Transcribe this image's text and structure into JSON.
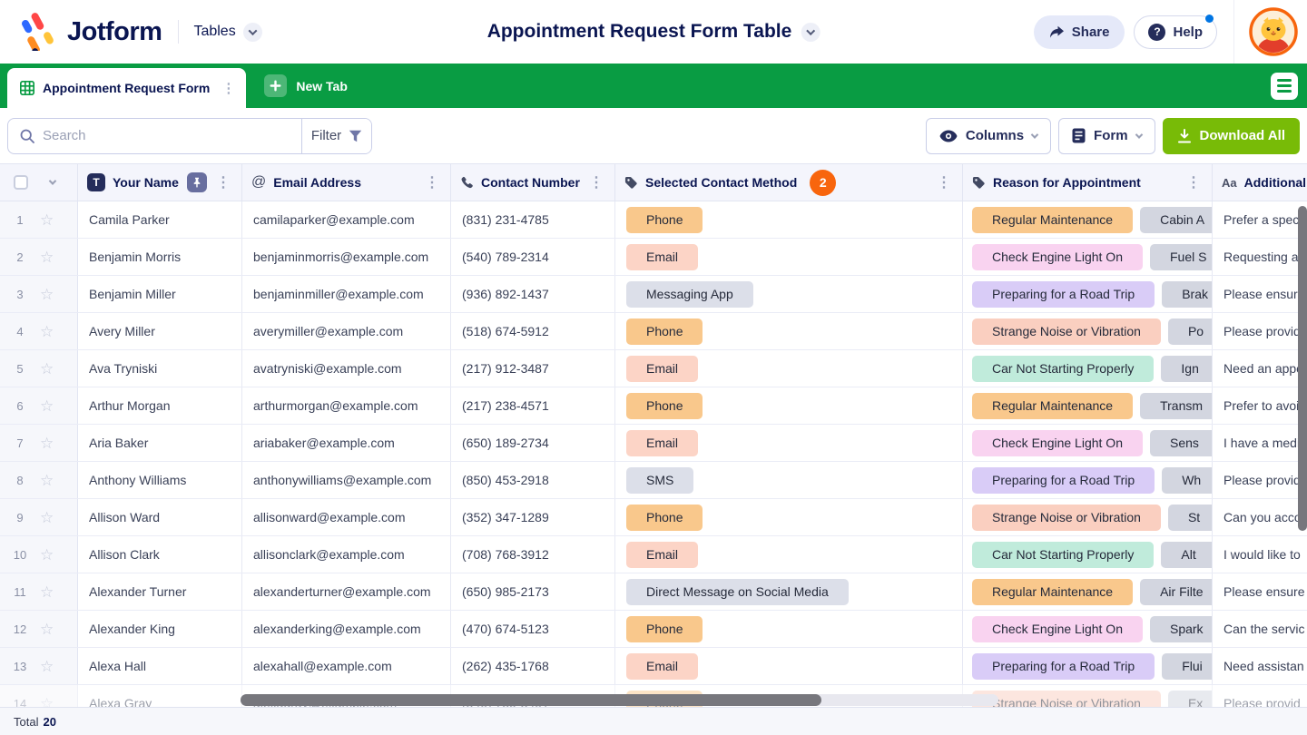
{
  "colors": {
    "brand_green": "#099C43",
    "download_green": "#78BB07",
    "navy": "#0A1551",
    "count_badge_orange": "#F8650D",
    "pill_orange": "#F9C88C",
    "pill_salmon": "#FCD4C6",
    "pill_gray": "#DCDFE9",
    "pill_gray2": "#D3D6E0",
    "pill_magenta": "#F9D3F0",
    "pill_lavender": "#D9CCF7",
    "pill_salmon2": "#FACFC0",
    "pill_mint": "#C0EBDB"
  },
  "icons": {
    "at": "@",
    "text_col": "T",
    "typography": "Aa",
    "qmark": "?",
    "star": "☆",
    "dots": "⋮"
  },
  "topbar": {
    "brand": "Jotform",
    "product": "Tables",
    "title": "Appointment Request Form Table",
    "share": "Share",
    "help": "Help"
  },
  "tabbar": {
    "active_tab": "Appointment Request Form",
    "new_tab": "New Tab"
  },
  "toolbar": {
    "search_placeholder": "Search",
    "filter": "Filter",
    "columns": "Columns",
    "form": "Form",
    "download": "Download All"
  },
  "table": {
    "columns": [
      {
        "label": "Your Name"
      },
      {
        "label": "Email Address"
      },
      {
        "label": "Contact Number"
      },
      {
        "label": "Selected Contact Method",
        "badge": "2"
      },
      {
        "label": "Reason for Appointment"
      },
      {
        "label": "Additional"
      }
    ],
    "rows": [
      {
        "num": "1",
        "name": "Camila Parker",
        "email": "camilaparker@example.com",
        "phone": "(831) 231-4785",
        "method": "Phone",
        "method_color": "pill_orange",
        "reason": "Regular Maintenance",
        "reason_color": "pill_orange",
        "reason2": "Cabin A",
        "additional": "Prefer a specif",
        "faded": false
      },
      {
        "num": "2",
        "name": "Benjamin Morris",
        "email": "benjaminmorris@example.com",
        "phone": "(540) 789-2314",
        "method": "Email",
        "method_color": "pill_salmon",
        "reason": "Check Engine Light On",
        "reason_color": "pill_magenta",
        "reason2": "Fuel S",
        "additional": "Requesting a sp",
        "faded": false
      },
      {
        "num": "3",
        "name": "Benjamin Miller",
        "email": "benjaminmiller@example.com",
        "phone": "(936) 892-1437",
        "method": "Messaging App",
        "method_color": "pill_gray",
        "reason": "Preparing for a Road Trip",
        "reason_color": "pill_lavender",
        "reason2": "Brak",
        "additional": "Please ensure a",
        "faded": false
      },
      {
        "num": "4",
        "name": "Avery Miller",
        "email": "averymiller@example.com",
        "phone": "(518) 674-5912",
        "method": "Phone",
        "method_color": "pill_orange",
        "reason": "Strange Noise or Vibration",
        "reason_color": "pill_salmon2",
        "reason2": "Po",
        "additional": "Please provide",
        "faded": false
      },
      {
        "num": "5",
        "name": "Ava Tryniski",
        "email": "avatryniski@example.com",
        "phone": "(217) 912-3487",
        "method": "Email",
        "method_color": "pill_salmon",
        "reason": "Car Not Starting Properly",
        "reason_color": "pill_mint",
        "reason2": "Ign",
        "additional": "Need an appoi",
        "faded": false
      },
      {
        "num": "6",
        "name": "Arthur Morgan",
        "email": "arthurmorgan@example.com",
        "phone": "(217) 238-4571",
        "method": "Phone",
        "method_color": "pill_orange",
        "reason": "Regular Maintenance",
        "reason_color": "pill_orange",
        "reason2": "Transm",
        "additional": "Prefer to avoid",
        "faded": false
      },
      {
        "num": "7",
        "name": "Aria Baker",
        "email": "ariabaker@example.com",
        "phone": "(650) 189-2734",
        "method": "Email",
        "method_color": "pill_salmon",
        "reason": "Check Engine Light On",
        "reason_color": "pill_magenta",
        "reason2": "Sens",
        "additional": "I have a medica",
        "faded": false
      },
      {
        "num": "8",
        "name": "Anthony Williams",
        "email": "anthonywilliams@example.com",
        "phone": "(850) 453-2918",
        "method": "SMS",
        "method_color": "pill_gray",
        "reason": "Preparing for a Road Trip",
        "reason_color": "pill_lavender",
        "reason2": "Wh",
        "additional": "Please provide",
        "faded": false
      },
      {
        "num": "9",
        "name": "Allison Ward",
        "email": "allisonward@example.com",
        "phone": "(352) 347-1289",
        "method": "Phone",
        "method_color": "pill_orange",
        "reason": "Strange Noise or Vibration",
        "reason_color": "pill_salmon2",
        "reason2": "St",
        "additional": "Can you accom",
        "faded": false
      },
      {
        "num": "10",
        "name": "Allison Clark",
        "email": "allisonclark@example.com",
        "phone": "(708) 768-3912",
        "method": "Email",
        "method_color": "pill_salmon",
        "reason": "Car Not Starting Properly",
        "reason_color": "pill_mint",
        "reason2": "Alt",
        "additional": "I would like to",
        "faded": false
      },
      {
        "num": "11",
        "name": "Alexander Turner",
        "email": "alexanderturner@example.com",
        "phone": "(650) 985-2173",
        "method": "Direct Message on Social Media",
        "method_color": "pill_gray",
        "reason": "Regular Maintenance",
        "reason_color": "pill_orange",
        "reason2": "Air Filte",
        "additional": "Please ensure t",
        "faded": false
      },
      {
        "num": "12",
        "name": "Alexander King",
        "email": "alexanderking@example.com",
        "phone": "(470) 674-5123",
        "method": "Phone",
        "method_color": "pill_orange",
        "reason": "Check Engine Light On",
        "reason_color": "pill_magenta",
        "reason2": "Spark",
        "additional": "Can the servic",
        "faded": false
      },
      {
        "num": "13",
        "name": "Alexa Hall",
        "email": "alexahall@example.com",
        "phone": "(262) 435-1768",
        "method": "Email",
        "method_color": "pill_salmon",
        "reason": "Preparing for a Road Trip",
        "reason_color": "pill_lavender",
        "reason2": "Flui",
        "additional": "Need assistan",
        "faded": false
      },
      {
        "num": "14",
        "name": "Alexa Gray",
        "email": "alexagray@example.com",
        "phone": "(540) 759-3401",
        "method": "Phone",
        "method_color": "pill_orange",
        "reason": "Strange Noise or Vibration",
        "reason_color": "pill_salmon2",
        "reason2": "Ex",
        "additional": "Please provid",
        "faded": true
      }
    ],
    "footer": {
      "total_label": "Total",
      "total_value": "20"
    }
  }
}
